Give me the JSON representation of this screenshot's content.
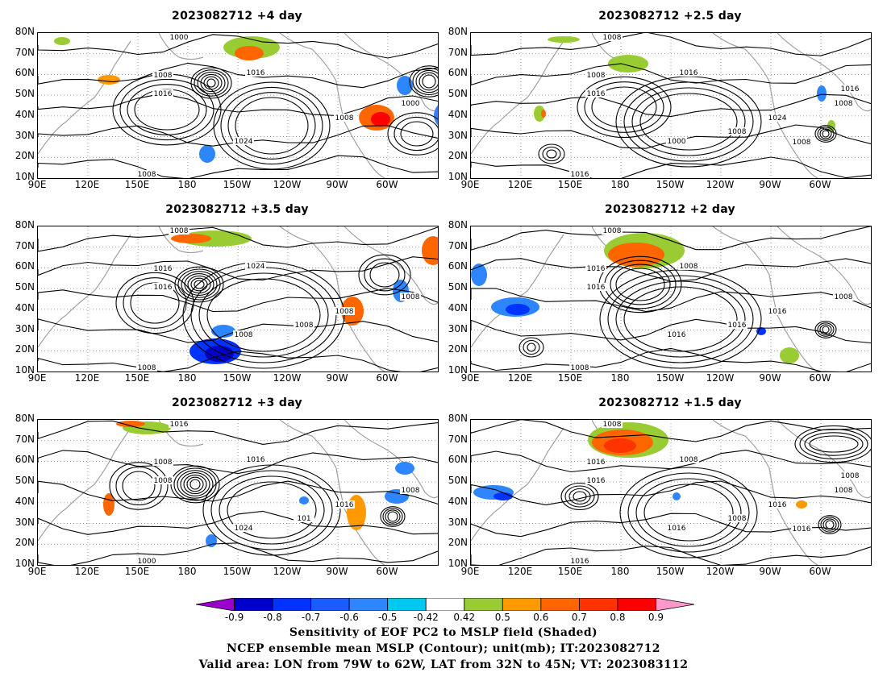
{
  "panels": [
    {
      "title": "2023082712  +4 day"
    },
    {
      "title": "2023082712  +2.5 day"
    },
    {
      "title": "2023082712  +3.5 day"
    },
    {
      "title": "2023082712  +2 day"
    },
    {
      "title": "2023082712  +3 day"
    },
    {
      "title": "2023082712  +1.5 day"
    }
  ],
  "y_ticks": [
    "80N",
    "70N",
    "60N",
    "50N",
    "40N",
    "30N",
    "20N",
    "10N"
  ],
  "x_ticks": [
    "90E",
    "120E",
    "150E",
    "180",
    "150W",
    "120W",
    "90W",
    "60W"
  ],
  "contour_labels": {
    "p0": [
      "1000",
      "1008",
      "1016",
      "1016",
      "1024",
      "1008",
      "1000",
      "1008"
    ],
    "p1": [
      "1008",
      "1008",
      "1016",
      "1016",
      "1000",
      "1024",
      "1008",
      "1016",
      "1008",
      "1008",
      "1016"
    ],
    "p2": [
      "1008",
      "1016",
      "1016",
      "1024",
      "1008",
      "1008",
      "1008",
      "1008",
      "1008"
    ],
    "p3": [
      "1008",
      "1016",
      "1016",
      "1008",
      "1016",
      "1016",
      "1008",
      "1008",
      "1016"
    ],
    "p4": [
      "1016",
      "1008",
      "1008",
      "1016",
      "1024",
      "1016",
      "1008",
      "1000",
      "101"
    ],
    "p5": [
      "1008",
      "1016",
      "1016",
      "1008",
      "1016",
      "1016",
      "1008",
      "1016",
      "1008",
      "1016",
      "1008"
    ]
  },
  "colorbar": {
    "labels": [
      "-0.9",
      "-0.8",
      "-0.7",
      "-0.6",
      "-0.5",
      "-0.42",
      "0.42",
      "0.5",
      "0.6",
      "0.7",
      "0.8",
      "0.9"
    ],
    "colors": [
      "#9900cc",
      "#0000cc",
      "#0033ff",
      "#1a5cff",
      "#2e86ff",
      "#00c8f0",
      "#ffffff",
      "#99cc33",
      "#ff9900",
      "#ff6600",
      "#ff3300",
      "#ff0000",
      "#ff99cc"
    ]
  },
  "caption": {
    "line1": "Sensitivity of EOF PC2 to MSLP field (Shaded)",
    "line2": "NCEP ensemble mean MSLP (Contour); unit(mb); IT:2023082712",
    "line3": "Valid area: LON from 79W to 62W, LAT from 32N to 45N; VT: 2023083112"
  }
}
